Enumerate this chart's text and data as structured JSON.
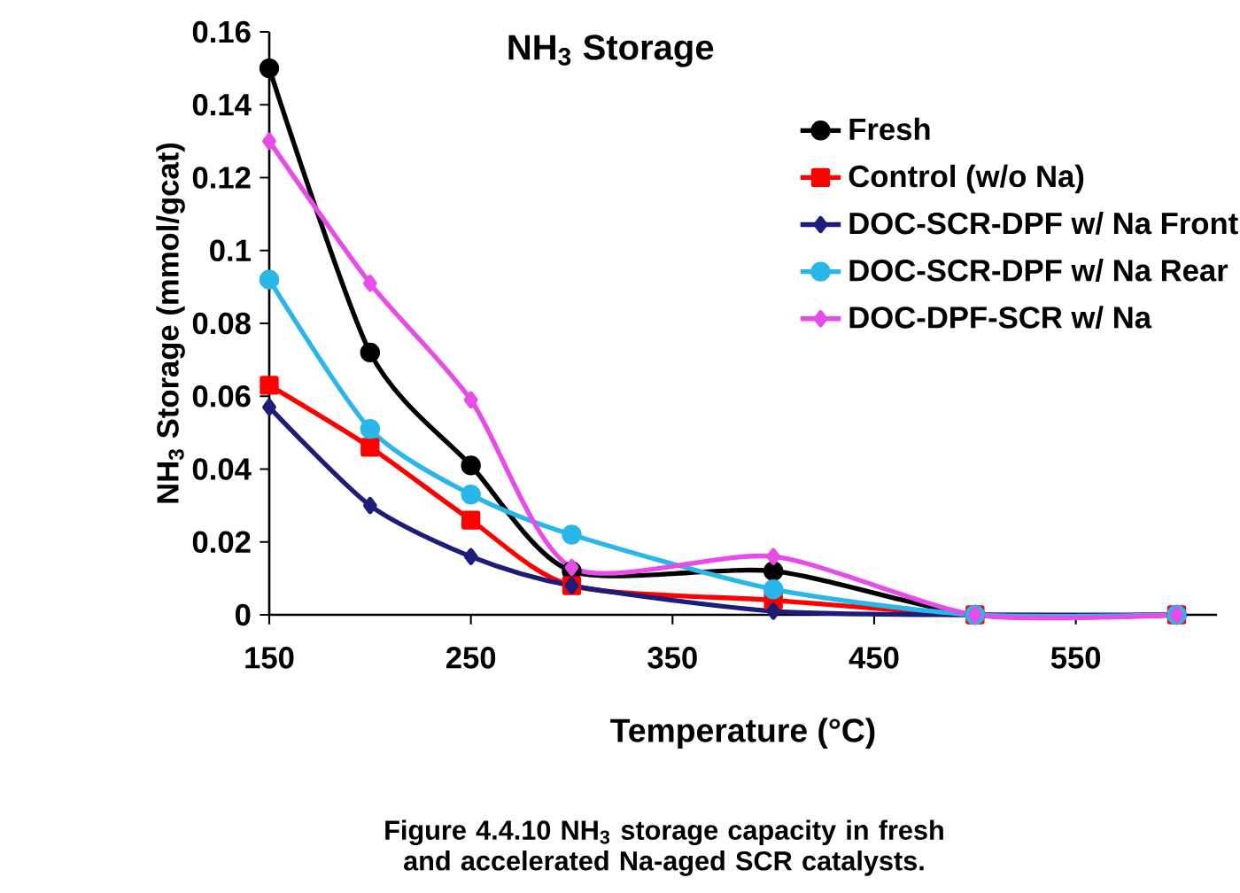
{
  "chart_data": {
    "type": "line",
    "title": "NH$_{3}$ Storage",
    "xlabel": "Temperature (°C)",
    "ylabel": "NH$_{3}$ Storage (mmol/gcat)",
    "annotations": [
      "Figure 4.4.10 NH$_{3}$ storage capacity in fresh and accelerated Na-aged SCR catalysts."
    ],
    "x": [
      150,
      200,
      250,
      300,
      400,
      500,
      600
    ],
    "series": [
      {
        "name": "Fresh",
        "color": "#000000",
        "marker": "circle",
        "values": [
          0.15,
          0.072,
          0.041,
          0.012,
          0.012,
          0,
          0
        ]
      },
      {
        "name": "Control (w/o Na)",
        "color": "#ff0000",
        "marker": "square",
        "values": [
          0.063,
          0.046,
          0.026,
          0.008,
          0.004,
          0,
          0
        ]
      },
      {
        "name": "DOC-SCR-DPF w/ Na Front",
        "color": "#1c1c7a",
        "marker": "diamond",
        "values": [
          0.057,
          0.03,
          0.016,
          0.008,
          0.001,
          0,
          0
        ]
      },
      {
        "name": "DOC-SCR-DPF w/ Na Rear",
        "color": "#29b6e8",
        "marker": "circle",
        "values": [
          0.092,
          0.051,
          0.033,
          0.022,
          0.007,
          0,
          0
        ]
      },
      {
        "name": "DOC-DPF-SCR w/ Na",
        "color": "#e84ce8",
        "marker": "diamond",
        "values": [
          0.13,
          0.091,
          0.059,
          0.013,
          0.016,
          0,
          0
        ]
      }
    ],
    "xlim": [
      150,
      620
    ],
    "xticks": [
      150,
      250,
      350,
      450,
      550
    ],
    "ylim": [
      0,
      0.16
    ],
    "yticks": [
      0,
      0.02,
      0.04,
      0.06,
      0.08,
      0.1,
      0.12,
      0.14,
      0.16
    ],
    "grid": false,
    "legend": "top right",
    "line_style": "solid"
  }
}
